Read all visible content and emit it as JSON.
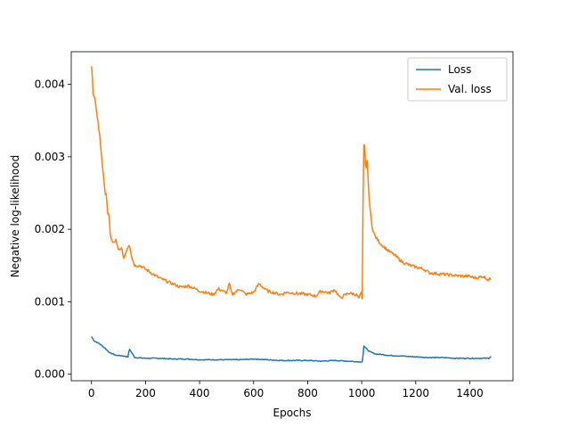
{
  "chart_data": {
    "type": "line",
    "title": "",
    "xlabel": "Epochs",
    "ylabel": "Negative log-likelihood",
    "xlim": [
      -75,
      1560
    ],
    "ylim": [
      -9e-05,
      0.00445
    ],
    "xticks": [
      0,
      200,
      400,
      600,
      800,
      1000,
      1200,
      1400
    ],
    "xtick_labels": [
      "0",
      "200",
      "400",
      "600",
      "800",
      "1000",
      "1200",
      "1400"
    ],
    "yticks": [
      0.0,
      0.001,
      0.002,
      0.003,
      0.004
    ],
    "ytick_labels": [
      "0.000",
      "0.001",
      "0.002",
      "0.003",
      "0.004"
    ],
    "grid": false,
    "legend_position": "top-right",
    "series": [
      {
        "name": "Loss",
        "color": "#1f77b4",
        "x": [
          0,
          10,
          20,
          30,
          40,
          50,
          60,
          70,
          80,
          90,
          100,
          120,
          135,
          140,
          160,
          200,
          250,
          300,
          350,
          400,
          450,
          500,
          550,
          600,
          650,
          700,
          750,
          800,
          850,
          900,
          950,
          1000,
          1003,
          1008,
          1015,
          1030,
          1050,
          1080,
          1100,
          1150,
          1200,
          1250,
          1300,
          1350,
          1400,
          1450,
          1470,
          1480
        ],
        "y": [
          0.00052,
          0.00046,
          0.00044,
          0.00042,
          0.00039,
          0.00036,
          0.00032,
          0.00029,
          0.00028,
          0.00026,
          0.00026,
          0.00025,
          0.00024,
          0.00035,
          0.00023,
          0.00022,
          0.00022,
          0.00021,
          0.00021,
          0.0002,
          0.0002,
          0.0002,
          0.0002,
          0.00021,
          0.0002,
          0.00019,
          0.00019,
          0.00019,
          0.00018,
          0.00019,
          0.00018,
          0.00017,
          0.00017,
          0.00039,
          0.00036,
          0.00031,
          0.00028,
          0.00027,
          0.00026,
          0.00025,
          0.00024,
          0.00023,
          0.00023,
          0.00022,
          0.00022,
          0.00022,
          0.00022,
          0.00025
        ]
      },
      {
        "name": "Val. loss",
        "color": "#ff7f0e",
        "x": [
          0,
          3,
          6,
          12,
          20,
          30,
          40,
          50,
          55,
          60,
          65,
          70,
          80,
          90,
          100,
          110,
          120,
          130,
          140,
          150,
          160,
          180,
          200,
          220,
          250,
          280,
          300,
          330,
          360,
          400,
          430,
          450,
          470,
          500,
          510,
          520,
          550,
          570,
          600,
          620,
          650,
          700,
          720,
          750,
          800,
          830,
          850,
          880,
          900,
          920,
          950,
          980,
          990,
          1000,
          1003,
          1006,
          1010,
          1015,
          1020,
          1025,
          1030,
          1040,
          1050,
          1070,
          1100,
          1120,
          1150,
          1180,
          1200,
          1230,
          1250,
          1300,
          1350,
          1400,
          1420,
          1450,
          1470,
          1480
        ],
        "y": [
          0.00425,
          0.0041,
          0.00385,
          0.0038,
          0.0036,
          0.0033,
          0.0029,
          0.0025,
          0.0025,
          0.0022,
          0.0022,
          0.0019,
          0.0018,
          0.00185,
          0.0017,
          0.00175,
          0.0016,
          0.00172,
          0.0018,
          0.0016,
          0.0015,
          0.0015,
          0.00145,
          0.0014,
          0.00133,
          0.00128,
          0.00125,
          0.0012,
          0.00122,
          0.00115,
          0.00112,
          0.0011,
          0.00118,
          0.00112,
          0.00125,
          0.0011,
          0.00118,
          0.0011,
          0.00113,
          0.00125,
          0.00115,
          0.0011,
          0.00113,
          0.00112,
          0.0011,
          0.00108,
          0.00115,
          0.00112,
          0.00117,
          0.00105,
          0.00112,
          0.0011,
          0.00105,
          0.00113,
          0.001,
          0.0031,
          0.00323,
          0.0028,
          0.00295,
          0.0026,
          0.0023,
          0.002,
          0.0019,
          0.0018,
          0.0017,
          0.00165,
          0.00155,
          0.0015,
          0.00148,
          0.00145,
          0.0014,
          0.00138,
          0.00136,
          0.00135,
          0.00133,
          0.00135,
          0.0013,
          0.00133
        ]
      }
    ]
  }
}
